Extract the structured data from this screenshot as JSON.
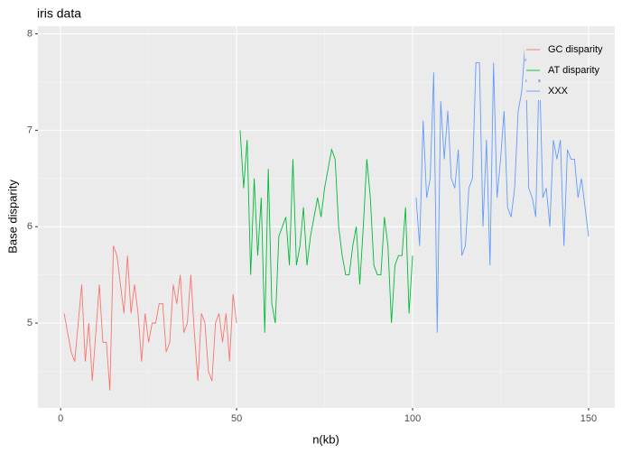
{
  "chart_data": {
    "type": "line",
    "title": "iris data",
    "x_label": "n(kb)",
    "y_label": "Base disparity",
    "xlim": [
      -6.45,
      157.45
    ],
    "ylim": [
      4.12,
      8.08
    ],
    "xticks": [
      0,
      50,
      100,
      150
    ],
    "yticks": [
      5,
      6,
      7,
      8
    ],
    "grid": true,
    "legend": "top-right",
    "series": [
      {
        "name": "GC disparity",
        "color": "#F8766D",
        "x": [
          1,
          2,
          3,
          4,
          5,
          6,
          7,
          8,
          9,
          10,
          11,
          12,
          13,
          14,
          15,
          16,
          17,
          18,
          19,
          20,
          21,
          22,
          23,
          24,
          25,
          26,
          27,
          28,
          29,
          30,
          31,
          32,
          33,
          34,
          35,
          36,
          37,
          38,
          39,
          40,
          41,
          42,
          43,
          44,
          45,
          46,
          47,
          48,
          49,
          50
        ],
        "values": [
          5.1,
          4.9,
          4.7,
          4.6,
          5.0,
          5.4,
          4.6,
          5.0,
          4.4,
          4.9,
          5.4,
          4.8,
          4.8,
          4.3,
          5.8,
          5.7,
          5.4,
          5.1,
          5.7,
          5.1,
          5.4,
          5.1,
          4.6,
          5.1,
          4.8,
          5.0,
          5.0,
          5.2,
          5.2,
          4.7,
          4.8,
          5.4,
          5.2,
          5.5,
          4.9,
          5.0,
          5.5,
          4.9,
          4.4,
          5.1,
          5.0,
          4.5,
          4.4,
          5.0,
          5.1,
          4.8,
          5.1,
          4.6,
          5.3,
          5.0
        ]
      },
      {
        "name": "AT disparity",
        "color": "#00BA38",
        "x": [
          51,
          52,
          53,
          54,
          55,
          56,
          57,
          58,
          59,
          60,
          61,
          62,
          63,
          64,
          65,
          66,
          67,
          68,
          69,
          70,
          71,
          72,
          73,
          74,
          75,
          76,
          77,
          78,
          79,
          80,
          81,
          82,
          83,
          84,
          85,
          86,
          87,
          88,
          89,
          90,
          91,
          92,
          93,
          94,
          95,
          96,
          97,
          98,
          99,
          100
        ],
        "values": [
          7.0,
          6.4,
          6.9,
          5.5,
          6.5,
          5.7,
          6.3,
          4.9,
          6.6,
          5.2,
          5.0,
          5.9,
          6.0,
          6.1,
          5.6,
          6.7,
          5.6,
          5.8,
          6.2,
          5.6,
          5.9,
          6.1,
          6.3,
          6.1,
          6.4,
          6.6,
          6.8,
          6.7,
          6.0,
          5.7,
          5.5,
          5.5,
          5.8,
          6.0,
          5.4,
          6.0,
          6.7,
          6.3,
          5.6,
          5.5,
          5.5,
          6.1,
          5.8,
          5.0,
          5.6,
          5.7,
          5.7,
          6.2,
          5.1,
          5.7
        ]
      },
      {
        "name": "XXX",
        "color": "#619CFF",
        "x": [
          101,
          102,
          103,
          104,
          105,
          106,
          107,
          108,
          109,
          110,
          111,
          112,
          113,
          114,
          115,
          116,
          117,
          118,
          119,
          120,
          121,
          122,
          123,
          124,
          125,
          126,
          127,
          128,
          129,
          130,
          131,
          132,
          133,
          134,
          135,
          136,
          137,
          138,
          139,
          140,
          141,
          142,
          143,
          144,
          145,
          146,
          147,
          148,
          149,
          150
        ],
        "values": [
          6.3,
          5.8,
          7.1,
          6.3,
          6.5,
          7.6,
          4.9,
          7.3,
          6.7,
          7.2,
          6.5,
          6.4,
          6.8,
          5.7,
          5.8,
          6.4,
          6.5,
          7.7,
          7.7,
          6.0,
          6.9,
          5.6,
          7.7,
          6.3,
          6.7,
          7.2,
          6.2,
          6.1,
          6.4,
          7.2,
          7.4,
          7.9,
          6.4,
          6.3,
          6.1,
          7.7,
          6.3,
          6.4,
          6.0,
          6.9,
          6.7,
          6.9,
          5.8,
          6.8,
          6.7,
          6.7,
          6.3,
          6.5,
          6.2,
          5.9
        ]
      }
    ]
  }
}
